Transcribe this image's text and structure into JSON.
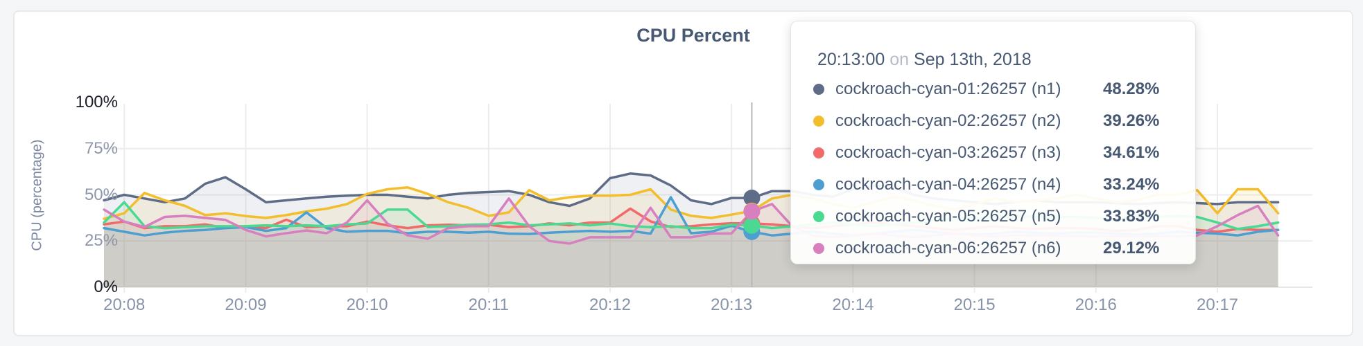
{
  "chart": {
    "title": "CPU Percent",
    "y_axis": {
      "title": "CPU (percentage)",
      "ticks": [
        "0%",
        "25%",
        "50%",
        "75%",
        "100%"
      ]
    },
    "x_axis": {
      "ticks": [
        "20:08",
        "20:09",
        "20:10",
        "20:11",
        "20:12",
        "20:13",
        "20:14",
        "20:15",
        "20:16",
        "20:17"
      ]
    }
  },
  "tooltip": {
    "time": "20:13:00",
    "on_word": "on",
    "date": "Sep 13th, 2018",
    "rows": [
      {
        "name": "cockroach-cyan-01:26257 (n1)",
        "value": "48.28%",
        "color": "#5F6C87"
      },
      {
        "name": "cockroach-cyan-02:26257 (n2)",
        "value": "39.26%",
        "color": "#F2BE2C"
      },
      {
        "name": "cockroach-cyan-03:26257 (n3)",
        "value": "34.61%",
        "color": "#F16969"
      },
      {
        "name": "cockroach-cyan-04:26257 (n4)",
        "value": "33.24%",
        "color": "#4E9FD1"
      },
      {
        "name": "cockroach-cyan-05:26257 (n5)",
        "value": "33.83%",
        "color": "#49D990"
      },
      {
        "name": "cockroach-cyan-06:26257 (n6)",
        "value": "29.12%",
        "color": "#D77FBF"
      }
    ]
  },
  "colors": {
    "grid_minor": "#ececec",
    "grid_zero": "#e8e8e8",
    "crosshair": "#b8b8b8",
    "title_text": "#475872",
    "area_opacity": 0.1
  },
  "chart_data": {
    "type": "line",
    "title": "CPU Percent",
    "ylabel": "CPU (percentage)",
    "ylim": [
      0,
      100
    ],
    "y_ticks": [
      0,
      25,
      50,
      75,
      100
    ],
    "x_start_time": "20:07:50",
    "x_step_seconds": 10,
    "x_tick_labels": [
      "20:08",
      "20:09",
      "20:10",
      "20:11",
      "20:12",
      "20:13",
      "20:14",
      "20:15",
      "20:16",
      "20:17"
    ],
    "x_tick_indices": [
      1,
      7,
      13,
      19,
      25,
      31,
      37,
      43,
      49,
      55
    ],
    "hover_tooltip_index": 31,
    "hover_dot_index": 32,
    "legend_position": "tooltip",
    "grid": true,
    "series": [
      {
        "name": "cockroach-cyan-01:26257 (n1)",
        "color": "#5F6C87",
        "values": [
          47,
          50,
          48,
          46,
          48,
          56,
          59.5,
          53,
          46,
          47,
          48,
          49,
          49.5,
          50,
          50,
          49,
          48,
          50,
          51,
          51.5,
          52,
          50,
          46,
          44,
          48,
          59,
          61.5,
          60.5,
          55,
          47,
          45,
          48.28,
          48.3,
          52,
          52,
          50,
          49,
          53,
          55,
          54,
          50,
          48,
          47,
          46,
          45,
          46,
          47,
          46,
          46,
          46,
          45.5,
          45,
          45.5,
          46,
          45.5,
          45,
          46,
          46,
          46
        ]
      },
      {
        "name": "cockroach-cyan-02:26257 (n2)",
        "color": "#F2BE2C",
        "values": [
          37,
          40,
          51,
          47,
          44,
          39,
          40,
          38.5,
          37.5,
          39,
          41,
          42.5,
          45,
          50.5,
          53,
          54,
          50.5,
          46,
          43,
          38.6,
          40.5,
          52.5,
          47,
          48.7,
          49.5,
          49.5,
          50,
          53,
          42,
          38.6,
          37.5,
          39.26,
          41.3,
          48,
          50,
          48,
          45,
          43,
          46,
          49,
          47,
          44,
          42,
          45,
          48,
          46,
          47,
          48,
          50,
          48,
          46,
          47,
          50,
          50,
          52.5,
          40,
          53,
          53,
          40
        ]
      },
      {
        "name": "cockroach-cyan-03:26257 (n3)",
        "color": "#F16969",
        "values": [
          34,
          35.5,
          32,
          33,
          33,
          34,
          32,
          33,
          32,
          36.5,
          32.5,
          33,
          33,
          35.5,
          33.5,
          32,
          33.5,
          33.8,
          33.5,
          33.8,
          32.5,
          33,
          34.5,
          33.5,
          35,
          35,
          42.5,
          35.6,
          32.6,
          33,
          34,
          34.61,
          34.5,
          34,
          33,
          32,
          33,
          34,
          35,
          34,
          33,
          32,
          31,
          32,
          33,
          32,
          31.5,
          32,
          32,
          31.5,
          30.5,
          31,
          33,
          33,
          31,
          30,
          31.5,
          31,
          31
        ]
      },
      {
        "name": "cockroach-cyan-04:26257 (n4)",
        "color": "#4E9FD1",
        "values": [
          32,
          30,
          28,
          29.5,
          30.5,
          31,
          32,
          32.5,
          30.5,
          32,
          40.5,
          32,
          30,
          30.5,
          30.5,
          29.2,
          30,
          30,
          29.5,
          30,
          29,
          28.8,
          29.5,
          30,
          30.5,
          30,
          30.5,
          29,
          48.7,
          29.2,
          30,
          33.24,
          30,
          28,
          29,
          30,
          29,
          28,
          29,
          30,
          31,
          30,
          29,
          28.5,
          29,
          30,
          29.5,
          29,
          29.5,
          29.5,
          29,
          28.5,
          29,
          30,
          29.5,
          29,
          28,
          30,
          31
        ]
      },
      {
        "name": "cockroach-cyan-05:26257 (n5)",
        "color": "#49D990",
        "values": [
          35,
          46,
          33,
          32,
          32.5,
          33,
          33,
          33,
          33.5,
          33,
          33.5,
          33,
          34,
          34.5,
          42,
          42,
          32.6,
          33,
          33.8,
          34,
          35,
          33.5,
          34,
          34.5,
          33.5,
          34.5,
          33,
          32.5,
          33,
          32,
          32,
          33.83,
          33.4,
          32,
          33,
          34,
          35,
          34,
          33,
          34,
          35,
          36,
          37,
          37.5,
          38,
          38.5,
          38,
          38,
          38,
          37.5,
          37,
          37.5,
          38,
          38.5,
          38,
          35,
          31.5,
          33,
          35
        ]
      },
      {
        "name": "cockroach-cyan-06:26257 (n6)",
        "color": "#D77FBF",
        "values": [
          42,
          35.5,
          32.6,
          38,
          38.6,
          37.5,
          36.4,
          31,
          27.5,
          29.2,
          30.7,
          29.2,
          35,
          47,
          34.5,
          28,
          26.2,
          32,
          33,
          33,
          48,
          33,
          25,
          23.6,
          27,
          27,
          27,
          43,
          27,
          27,
          29,
          29.12,
          41,
          45,
          33,
          28,
          27,
          28,
          29,
          28,
          27,
          28,
          29,
          28,
          27.5,
          28,
          28,
          27.7,
          27.7,
          27.5,
          27.7,
          27.5,
          27.7,
          27.5,
          28,
          33,
          39,
          44,
          28
        ]
      }
    ]
  }
}
